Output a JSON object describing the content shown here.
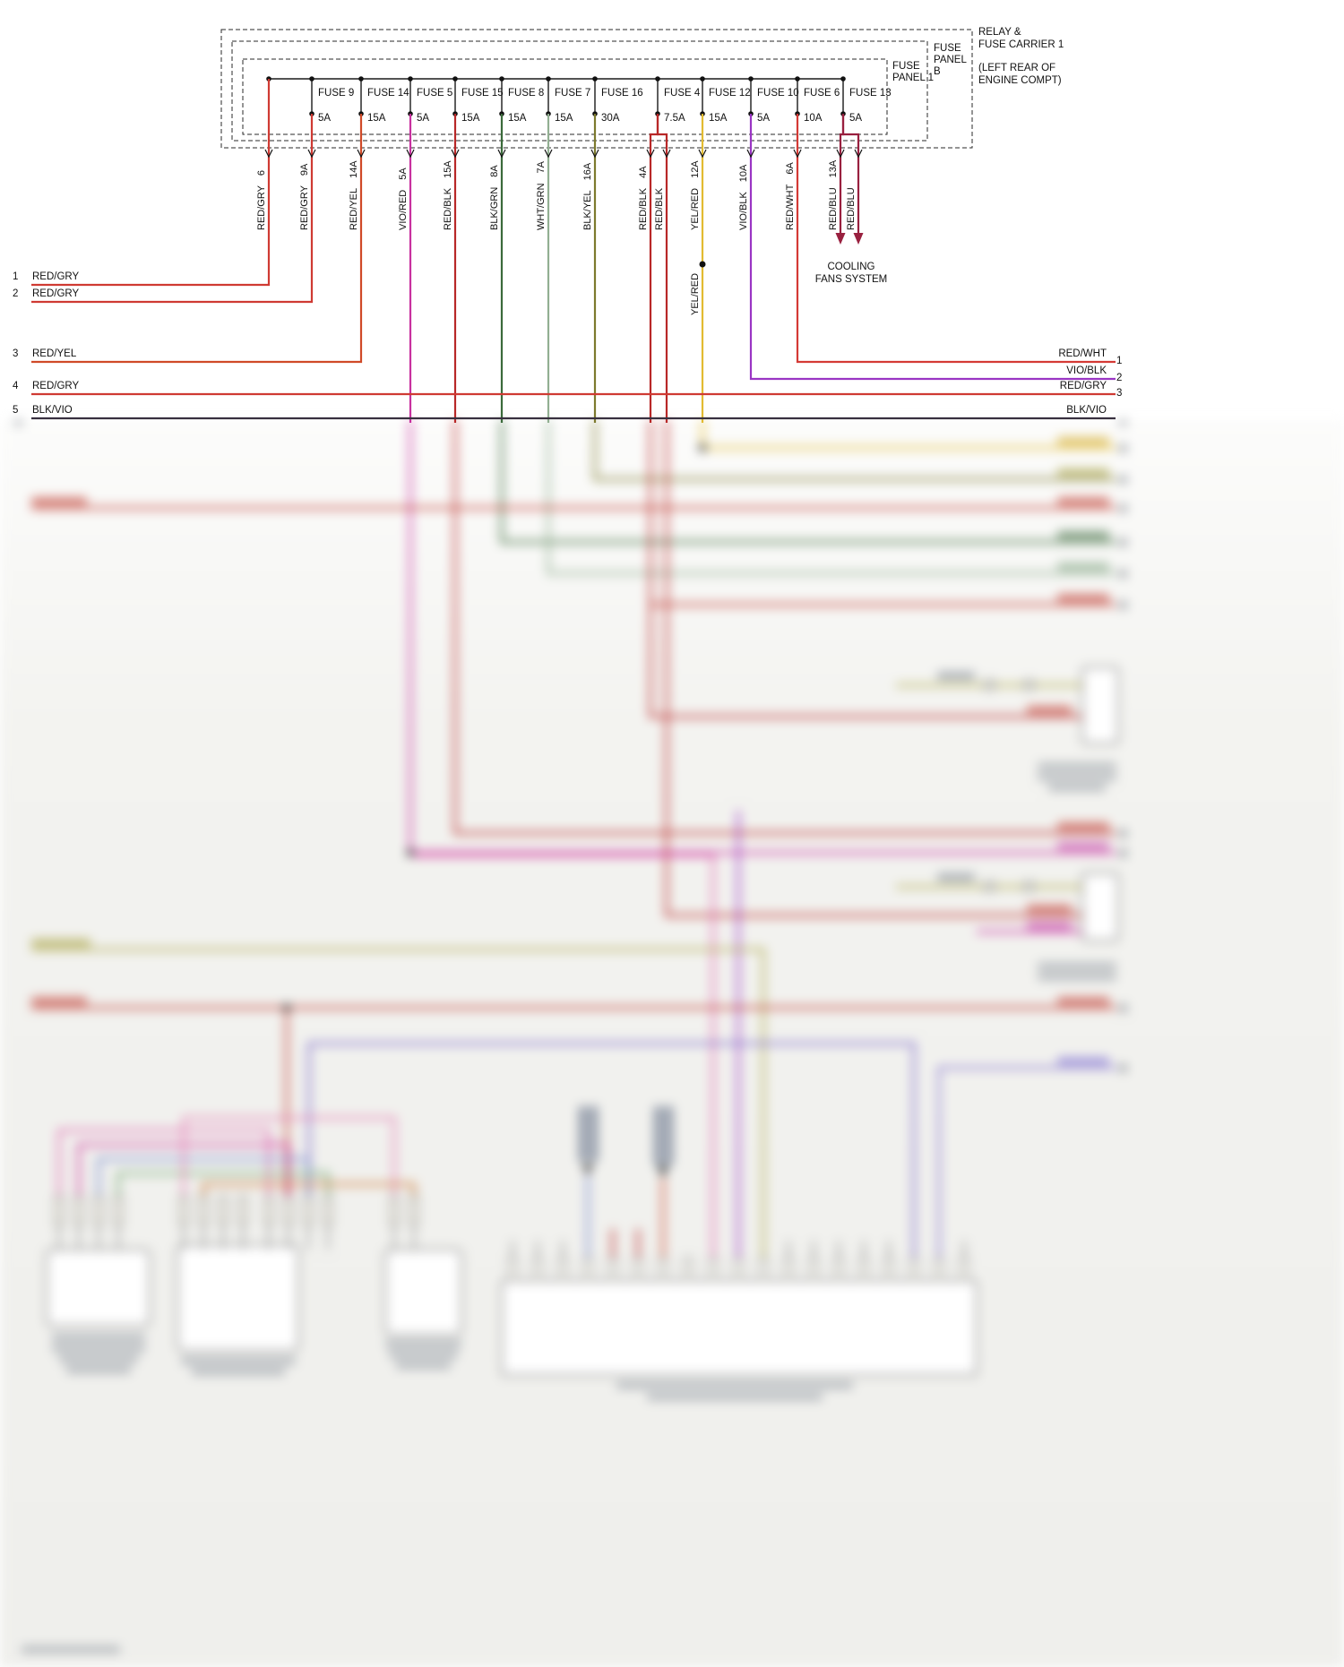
{
  "panel": {
    "relay_carrier": [
      "RELAY &",
      "FUSE CARRIER 1",
      "(LEFT REAR OF",
      "ENGINE COMPT)"
    ],
    "fuse_panel_b": [
      "FUSE",
      "PANEL",
      "B"
    ],
    "fuse_panel_1": [
      "FUSE",
      "PANEL 1"
    ]
  },
  "fuses": [
    {
      "name": "FUSE 9",
      "amp": "5A"
    },
    {
      "name": "FUSE 14",
      "amp": "15A"
    },
    {
      "name": "FUSE 5",
      "amp": "5A"
    },
    {
      "name": "FUSE 15",
      "amp": "15A"
    },
    {
      "name": "FUSE 8",
      "amp": "15A"
    },
    {
      "name": "FUSE 7",
      "amp": "15A"
    },
    {
      "name": "FUSE 16",
      "amp": "30A"
    },
    {
      "name": "FUSE 4",
      "amp": "7.5A"
    },
    {
      "name": "FUSE 12",
      "amp": "15A"
    },
    {
      "name": "FUSE 10",
      "amp": "5A"
    },
    {
      "name": "FUSE 6",
      "amp": "10A"
    },
    {
      "name": "FUSE 13",
      "amp": "5A"
    }
  ],
  "wire_drops": [
    {
      "color": "RED/GRY",
      "pin": "6"
    },
    {
      "color": "RED/GRY",
      "pin": "9A"
    },
    {
      "color": "RED/YEL",
      "pin": "14A"
    },
    {
      "color": "VIO/RED",
      "pin": "5A"
    },
    {
      "color": "RED/BLK",
      "pin": "15A"
    },
    {
      "color": "BLK/GRN",
      "pin": "8A"
    },
    {
      "color": "WHT/GRN",
      "pin": "7A"
    },
    {
      "color": "BLK/YEL",
      "pin": "16A"
    },
    {
      "color": "RED/BLK",
      "pin": "4A"
    },
    {
      "color": "RED/BLK",
      "pin": ""
    },
    {
      "color": "YEL/RED",
      "pin": "12A"
    },
    {
      "color": "VIO/BLK",
      "pin": "10A"
    },
    {
      "color": "RED/WHT",
      "pin": "6A"
    },
    {
      "color": "RED/BLU",
      "pin": "13A"
    },
    {
      "color": "RED/BLU",
      "pin": ""
    }
  ],
  "branch_label": "YEL/RED",
  "left_rows": [
    {
      "pin": "1",
      "color": "RED/GRY"
    },
    {
      "pin": "2",
      "color": "RED/GRY"
    },
    {
      "pin": "3",
      "color": "RED/YEL"
    },
    {
      "pin": "4",
      "color": "RED/GRY"
    },
    {
      "pin": "5",
      "color": "BLK/VIO"
    }
  ],
  "right_rows": [
    {
      "pin": "1",
      "color": "RED/WHT"
    },
    {
      "pin": "2",
      "color": "VIO/BLK"
    },
    {
      "pin": "3",
      "color": "RED/GRY"
    },
    {
      "pin": "",
      "color": "BLK/VIO"
    }
  ],
  "cooling_fans": [
    "COOLING",
    "FANS SYSTEM"
  ],
  "wire_colors": {
    "RED/GRY": "#cf3a33",
    "RED/YEL": "#d04a28",
    "VIO/RED": "#c8309f",
    "RED/BLK": "#b82828",
    "BLK/GRN": "#3b6b3b",
    "WHT/GRN": "#92af92",
    "BLK/YEL": "#7d7a2e",
    "YEL/RED": "#e2bb31",
    "VIO/BLK": "#9a35c4",
    "RED/WHT": "#d43a35",
    "RED/BLU": "#99203f",
    "BLK/VIO": "#38303f"
  }
}
